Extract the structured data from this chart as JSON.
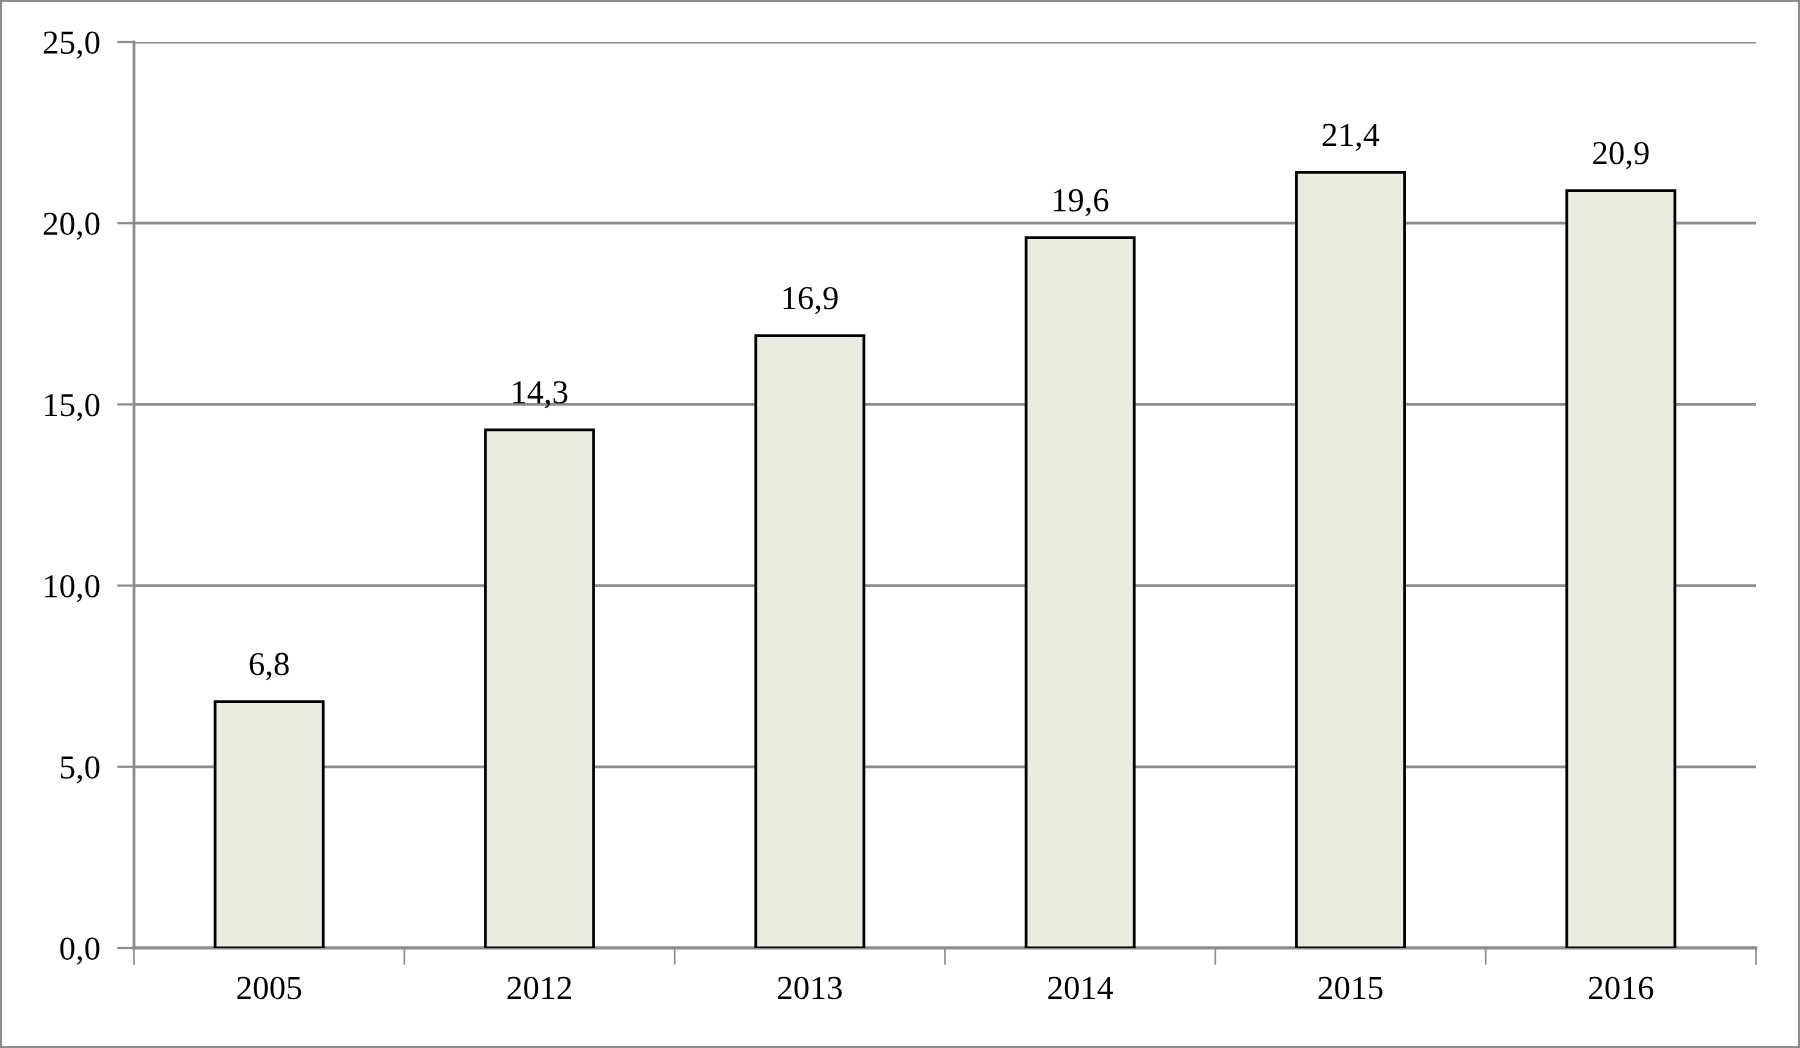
{
  "chart_data": {
    "type": "bar",
    "categories": [
      "2005",
      "2012",
      "2013",
      "2014",
      "2015",
      "2016"
    ],
    "values": [
      6.8,
      14.3,
      16.9,
      19.6,
      21.4,
      20.9
    ],
    "value_labels": [
      "6,8",
      "14,3",
      "16,9",
      "19,6",
      "21,4",
      "20,9"
    ],
    "color": "#ecebe0",
    "ylim": [
      0,
      25
    ],
    "yticks": [
      {
        "value": 0,
        "label": "0,0"
      },
      {
        "value": 5,
        "label": "5,0"
      },
      {
        "value": 10,
        "label": "10,0"
      },
      {
        "value": 15,
        "label": "15,0"
      },
      {
        "value": 20,
        "label": "20,0"
      },
      {
        "value": 25,
        "label": "25,0"
      }
    ],
    "grid": "y",
    "legend": false
  }
}
